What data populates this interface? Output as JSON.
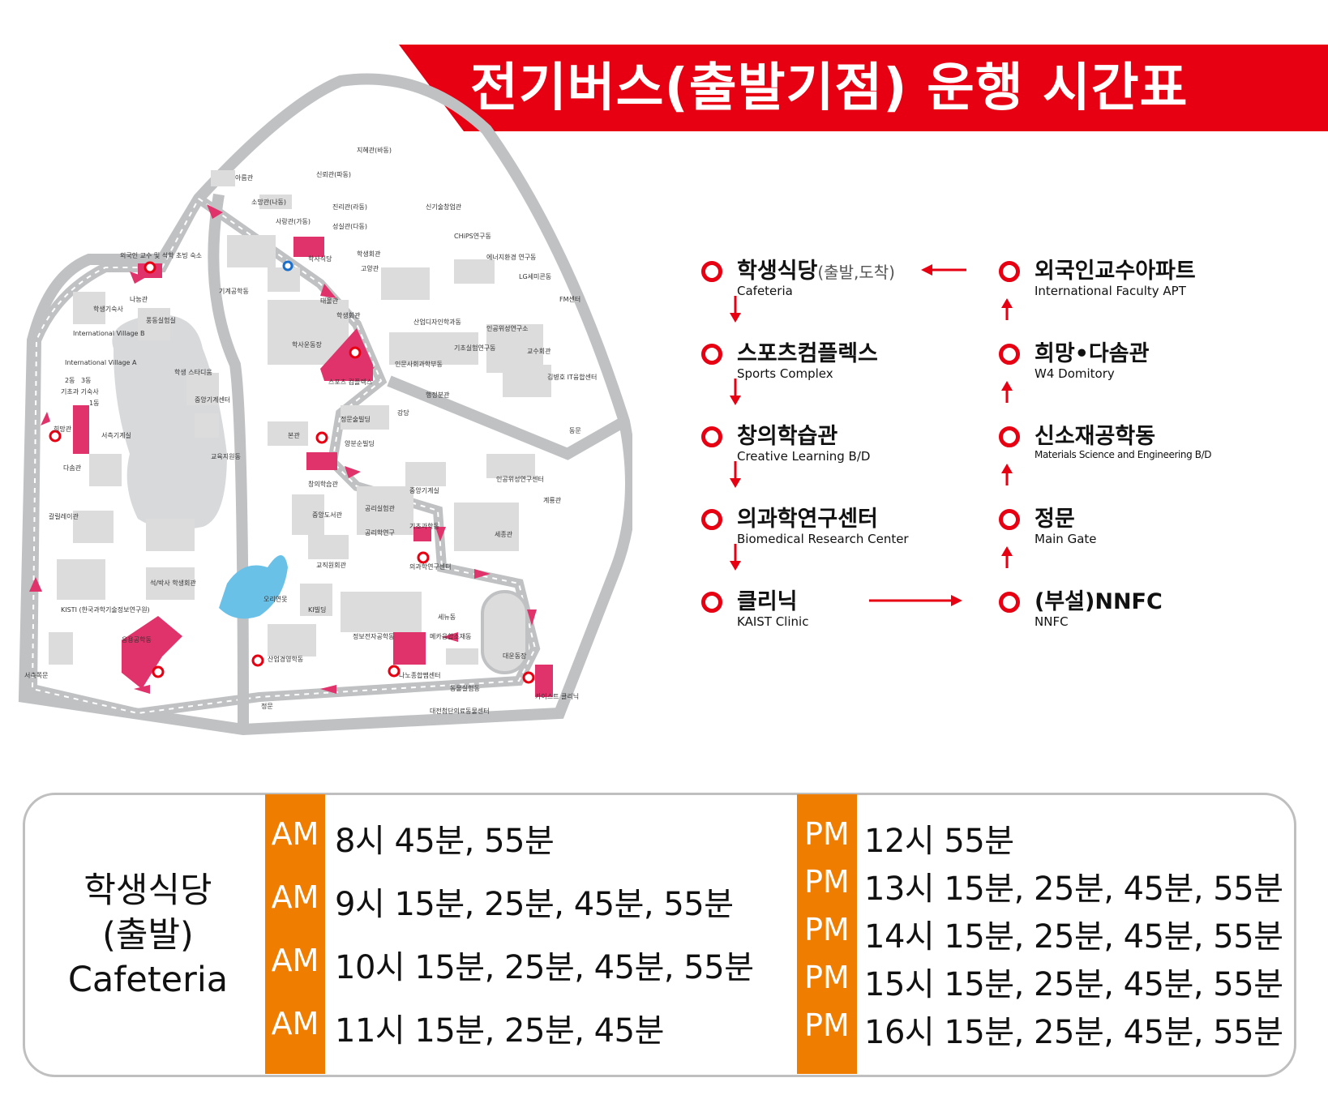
{
  "title": "전기버스(출발기점) 운행 시간표",
  "colors": {
    "accent": "#e60012",
    "am_pm_band": "#ef7d00",
    "route": "#bfc1c3",
    "building": "#dcdcdc",
    "highlight": "#e0336b",
    "pond": "#6ac1e8"
  },
  "map": {
    "labels": [
      "지혜관(바동)",
      "아름관",
      "신뢰관(파동)",
      "소망관(나동)",
      "진리관(라동)",
      "사랑관(가동)",
      "성실관(다동)",
      "신기술창업관",
      "CHiPS연구동",
      "에너지환경 연구동",
      "LG세미콘동",
      "FM센터",
      "학생회관",
      "고양관",
      "학사식당",
      "외국인 교수 및 석학 초빙 숙소",
      "나눔관",
      "기계공학동",
      "태울관",
      "학생회관",
      "풍동실험실",
      "학생기숙사",
      "International Village B",
      "International Village A",
      "학생 스타디움",
      "2동",
      "3동",
      "기초과 기숙사",
      "1동",
      "산업디자인학과동",
      "기초실험연구동",
      "교수회관",
      "인공위성연구소",
      "김병호 IT융합센터",
      "인문사회과학부동",
      "행정분관",
      "스포츠 컴플렉스",
      "학사운동장",
      "강당",
      "동문",
      "중앙기계센터",
      "정문술빌딩",
      "서측기계실",
      "희망관",
      "다솜관",
      "본관",
      "양분순빌딩",
      "교육지원동",
      "인공위성연구센터",
      "창의학습관",
      "중앙기계실",
      "계룡관",
      "중앙도서관",
      "갈릴레이관",
      "공리실험관",
      "공리학연구",
      "기초과학동",
      "세종관",
      "의과학연구센터",
      "석/박사 학생회관",
      "교직원회관",
      "오리연못",
      "KI빌딩",
      "KISTI (한국과학기술정보연구원)",
      "응용공학동",
      "세뉴동",
      "정보전자공학동",
      "메카융합소재동",
      "대운동장",
      "산업경영학동",
      "나노종합팹센터",
      "동물실험동",
      "서측쪽문",
      "정문",
      "카이스트 클리닉",
      "대전첨단의료동물센터"
    ]
  },
  "route": {
    "stops_left": [
      {
        "ko": "학생식당",
        "ko_note": "(출발,도착)",
        "en": "Cafeteria"
      },
      {
        "ko": "스포츠컴플렉스",
        "en": "Sports Complex"
      },
      {
        "ko": "창의학습관",
        "en": "Creative Learning B/D"
      },
      {
        "ko": "의과학연구센터",
        "en": "Biomedical Research Center"
      },
      {
        "ko": "클리닉",
        "en": "KAIST Clinic"
      }
    ],
    "stops_right": [
      {
        "ko": "외국인교수아파트",
        "en": "International Faculty APT"
      },
      {
        "ko": "희망•다솜관",
        "en": "W4 Domitory"
      },
      {
        "ko": "신소재공학동",
        "en": "Materials Science and Engineering B/D"
      },
      {
        "ko": "정문",
        "en": "Main Gate"
      },
      {
        "ko": "(부설)NNFC",
        "en": "NNFC"
      }
    ]
  },
  "schedule": {
    "origin_line1": "학생식당",
    "origin_line2": "(출발)",
    "origin_line3": "Cafeteria",
    "am": [
      {
        "label": "AM",
        "time": "8시 45분, 55분"
      },
      {
        "label": "AM",
        "time": "9시 15분, 25분, 45분, 55분"
      },
      {
        "label": "AM",
        "time": "10시 15분, 25분, 45분, 55분"
      },
      {
        "label": "AM",
        "time": "11시 15분, 25분, 45분"
      }
    ],
    "pm": [
      {
        "label": "PM",
        "time": "12시 55분"
      },
      {
        "label": "PM",
        "time": "13시 15분, 25분, 45분, 55분"
      },
      {
        "label": "PM",
        "time": "14시 15분, 25분, 45분, 55분"
      },
      {
        "label": "PM",
        "time": "15시 15분, 25분, 45분, 55분"
      },
      {
        "label": "PM",
        "time": "16시 15분, 25분, 45분, 55분"
      }
    ]
  }
}
